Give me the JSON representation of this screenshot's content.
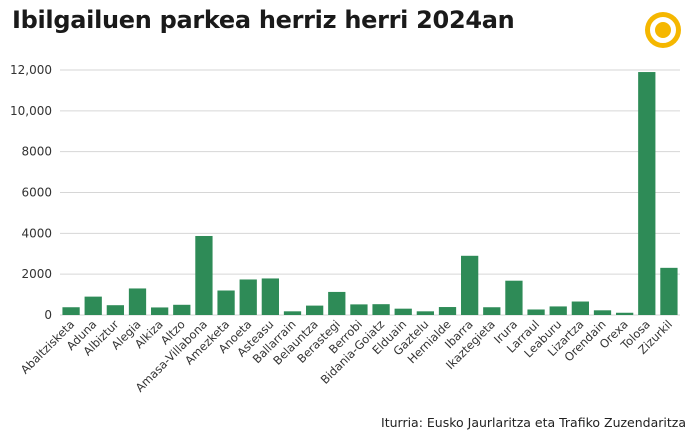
{
  "title": "Ibilgailuen parkea herriz herri 2024an",
  "source": "Iturria: Eusko Jaurlaritza eta Trafiko Zuzendaritza",
  "colors": {
    "bar": "#2e8b57",
    "grid": "#d6d6d6",
    "logo": "#f5b700"
  },
  "logo_icon": "publisher-logo-icon",
  "chart_data": {
    "type": "bar",
    "title": "Ibilgailuen parkea herriz herri 2024an",
    "xlabel": "",
    "ylabel": "",
    "ylim": [
      0,
      12000
    ],
    "yticks": [
      0,
      2000,
      4000,
      6000,
      8000,
      10000,
      12000
    ],
    "ytick_labels": [
      "0",
      "2000",
      "4000",
      "6000",
      "8000",
      "10,000",
      "12,000"
    ],
    "grid": true,
    "categories": [
      "Abaltzisketa",
      "Aduna",
      "Albiztur",
      "Alegia",
      "Alkiza",
      "Altzo",
      "Amasa-Villabona",
      "Amezketa",
      "Anoeta",
      "Asteasu",
      "Ballarrain",
      "Belauntza",
      "Berastegi",
      "Berrobi",
      "Bidania-Goiatz",
      "Elduain",
      "Gaztelu",
      "Hernialde",
      "Ibarra",
      "Ikaztegieta",
      "Irura",
      "Larraul",
      "Leaburu",
      "Lizartza",
      "Orendain",
      "Orexa",
      "Tolosa",
      "Zizurkil"
    ],
    "values": [
      380,
      900,
      480,
      1300,
      370,
      500,
      3870,
      1200,
      1740,
      1790,
      180,
      460,
      1130,
      520,
      530,
      310,
      180,
      390,
      2900,
      380,
      1680,
      270,
      420,
      660,
      230,
      110,
      11900,
      2310
    ]
  }
}
